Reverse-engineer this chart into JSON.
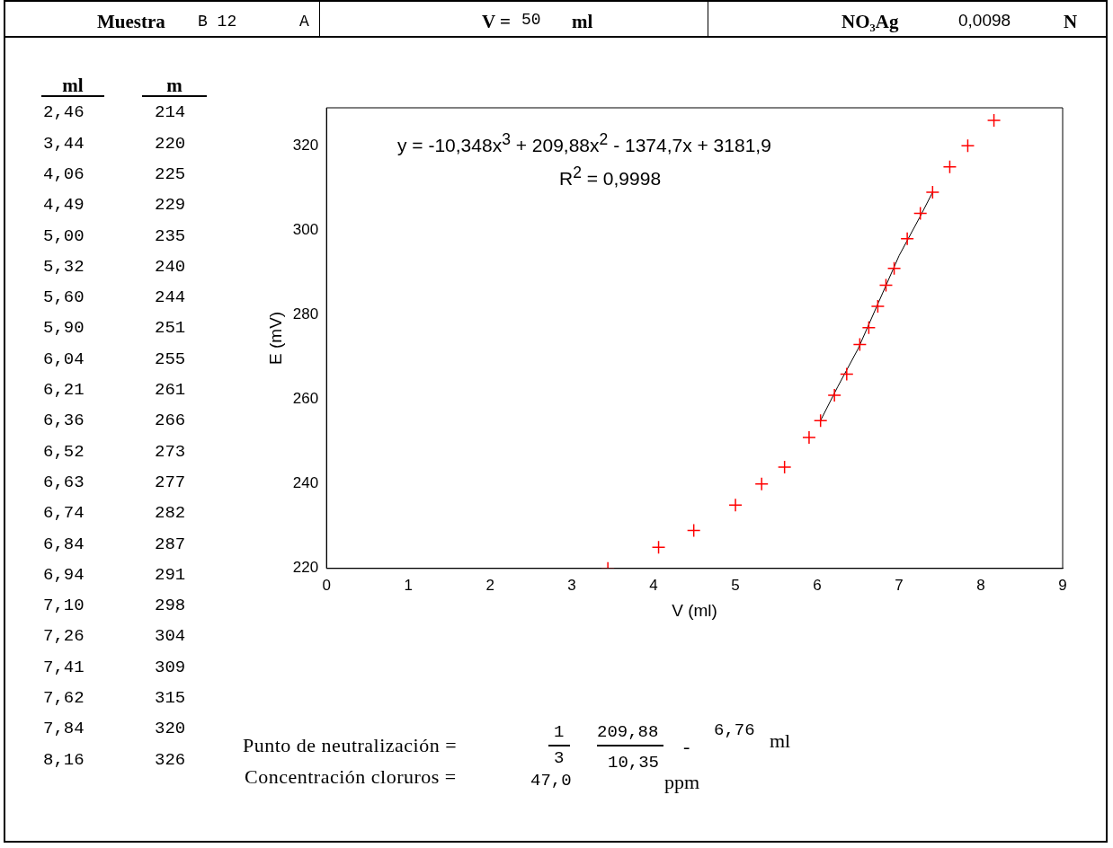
{
  "chart_data": [
    {
      "type": "other",
      "annotations": [
        "Muestra",
        "B 12",
        "A",
        "V =",
        "50",
        "ml",
        "NO₃Ag",
        "0,0098",
        "N"
      ]
    },
    {
      "type": "other",
      "annotations": [
        "ml",
        "m",
        "2,46",
        "214",
        "3,44",
        "220",
        "4,06",
        "225",
        "4,49",
        "229",
        "5,00",
        "235",
        "5,32",
        "240",
        "5,60",
        "244",
        "5,90",
        "251",
        "6,04",
        "255",
        "6,21",
        "261",
        "6,36",
        "266",
        "6,52",
        "273",
        "6,63",
        "277",
        "6,74",
        "282",
        "6,84",
        "287",
        "6,94",
        "291",
        "7,10",
        "298",
        "7,26",
        "304",
        "7,41",
        "309",
        "7,62",
        "315",
        "7,84",
        "320",
        "8,16",
        "326"
      ]
    },
    {
      "type": "scatter",
      "xlabel": "V (ml)",
      "ylabel": "E (mV)",
      "xlim": [
        0,
        9
      ],
      "xticks": [
        0,
        1,
        2,
        3,
        4,
        5,
        6,
        7,
        8,
        9
      ],
      "ylim": [
        220,
        329
      ],
      "yticks": [
        220,
        240,
        260,
        280,
        300,
        320
      ],
      "annotations": [
        "y = -10,348x$^{3}$ + 209,88x$^{2}$ - 1374,7x + 3181,9",
        "R$^{2}$ = 0,9998"
      ],
      "series": [
        {
          "type": "scatter",
          "marker": "cross",
          "color": "#ff0000",
          "x": [
            3.44,
            4.06,
            4.49,
            5.0,
            5.32,
            5.6,
            5.9,
            6.04,
            6.21,
            6.36,
            6.52,
            6.63,
            6.74,
            6.84,
            6.94,
            7.1,
            7.26,
            7.41,
            7.62,
            7.84,
            8.16
          ],
          "values": [
            220,
            225,
            229,
            235,
            240,
            244,
            251,
            255,
            261,
            266,
            273,
            277,
            282,
            287,
            291,
            298,
            304,
            309,
            315,
            320,
            326
          ]
        },
        {
          "type": "line",
          "marker": "none",
          "color": "#000000",
          "x": [
            6.04,
            6.25,
            6.5,
            6.75,
            7.0,
            7.25,
            7.41
          ],
          "values": [
            255,
            263,
            272,
            283,
            294,
            303,
            309
          ]
        }
      ]
    },
    {
      "type": "other",
      "annotations": [
        "Punto de neutralización =",
        "1",
        "3",
        "209,88",
        "10,35",
        "-",
        "6,76",
        "ml",
        "Concentración cloruros =",
        "47,0",
        "ppm"
      ]
    }
  ]
}
